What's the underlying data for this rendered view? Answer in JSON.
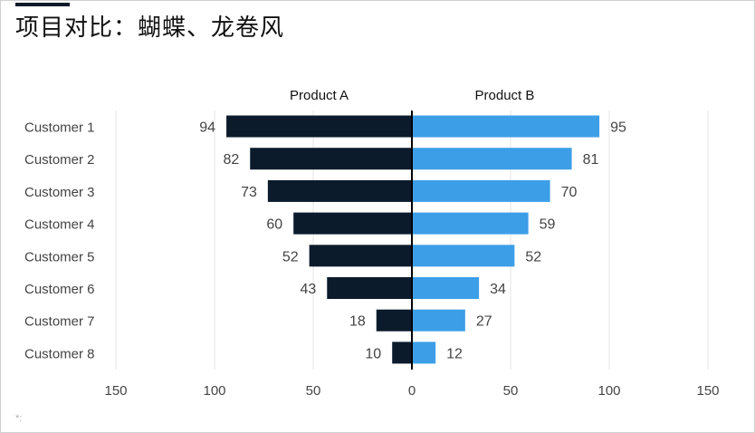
{
  "title": "项目对比：蝴蝶、龙卷风",
  "footnote": "*:",
  "colors": {
    "product_a": "#0b1b2b",
    "product_b": "#3d9ee8",
    "grid": "#e6e6e6",
    "axis": "#000000",
    "text": "#444444"
  },
  "chart_data": {
    "type": "bar",
    "orientation": "horizontal-butterfly",
    "categories": [
      "Customer 1",
      "Customer 2",
      "Customer 3",
      "Customer 4",
      "Customer 5",
      "Customer 6",
      "Customer 7",
      "Customer 8"
    ],
    "series": [
      {
        "name": "Product A",
        "side": "left",
        "values": [
          94,
          82,
          73,
          60,
          52,
          43,
          18,
          10
        ]
      },
      {
        "name": "Product B",
        "side": "right",
        "values": [
          95,
          81,
          70,
          59,
          52,
          34,
          27,
          12
        ]
      }
    ],
    "xlim": [
      -150,
      150
    ],
    "xticks": [
      -150,
      -100,
      -50,
      0,
      50,
      100,
      150
    ],
    "xtick_labels": [
      "150",
      "100",
      "50",
      "0",
      "50",
      "100",
      "150"
    ],
    "grid": true,
    "data_labels": true
  }
}
